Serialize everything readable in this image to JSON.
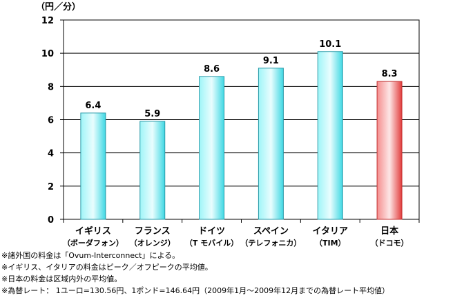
{
  "chart_data": {
    "type": "bar",
    "ylabel": "（円／分）",
    "ylim": [
      0,
      12
    ],
    "yticks": [
      0,
      2,
      4,
      6,
      8,
      10,
      12
    ],
    "categories": [
      {
        "name": "イギリス",
        "carrier": "（ボーダフォン）"
      },
      {
        "name": "フランス",
        "carrier": "（オレンジ）"
      },
      {
        "name": "ドイツ",
        "carrier": "（T モバイル）"
      },
      {
        "name": "スペイン",
        "carrier": "（テレフォニカ）"
      },
      {
        "name": "イタリア",
        "carrier": "（TIM）"
      },
      {
        "name": "日本",
        "carrier": "（ドコモ）"
      }
    ],
    "values": [
      6.4,
      5.9,
      8.6,
      9.1,
      10.1,
      8.3
    ],
    "value_labels": [
      "6.4",
      "5.9",
      "8.6",
      "9.1",
      "10.1",
      "8.3"
    ],
    "bar_colors": [
      "#5ee6ee",
      "#5ee6ee",
      "#5ee6ee",
      "#5ee6ee",
      "#5ee6ee",
      "#f05a5a"
    ],
    "highlight_index": 5,
    "grid": true
  },
  "notes": [
    "※諸外国の料金は「Ovum-Interconnect」による。",
    "※イギリス、イタリアの料金はピーク／オフピークの平均値。",
    "※日本の料金は区域内外の平均値。",
    "※為替レート： 1ユーロ=130.56円、1ポンド=146.64円（2009年1月～2009年12月までの為替レート平均値）"
  ]
}
